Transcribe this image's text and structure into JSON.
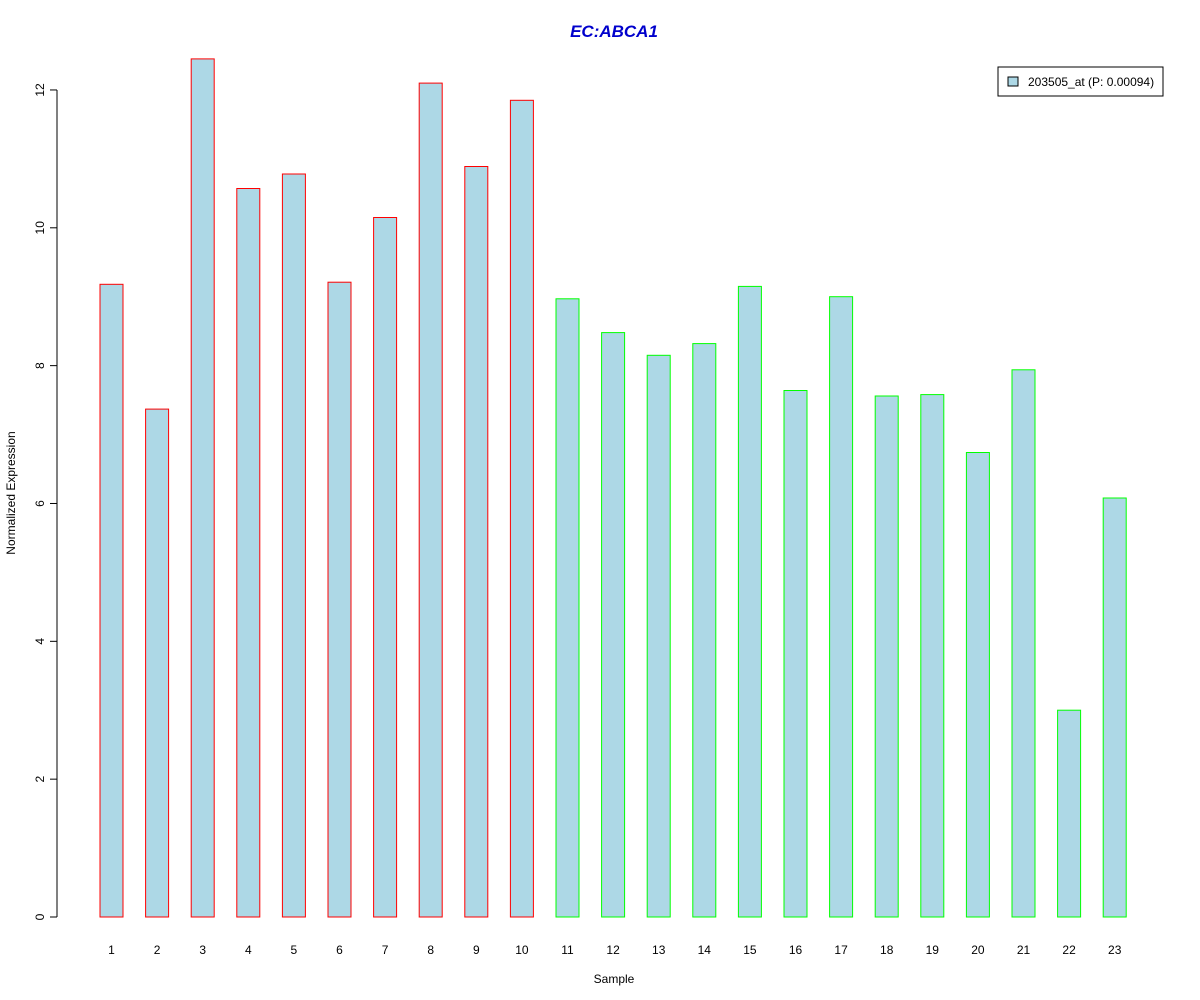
{
  "chart_data": {
    "type": "bar",
    "title": "EC:ABCA1",
    "xlabel": "Sample",
    "ylabel": "Normalized Expression",
    "ylim": [
      0,
      12.5
    ],
    "yticks": [
      0,
      2,
      4,
      6,
      8,
      10,
      12
    ],
    "categories": [
      "1",
      "2",
      "3",
      "4",
      "5",
      "6",
      "7",
      "8",
      "9",
      "10",
      "11",
      "12",
      "13",
      "14",
      "15",
      "16",
      "17",
      "18",
      "19",
      "20",
      "21",
      "22",
      "23"
    ],
    "series": [
      {
        "name": "203505_at (P: 0.00094)",
        "values": [
          9.18,
          7.37,
          12.45,
          10.57,
          10.78,
          9.21,
          10.15,
          12.1,
          10.89,
          11.85,
          8.97,
          8.48,
          8.15,
          8.32,
          9.15,
          7.64,
          9.0,
          7.56,
          7.58,
          6.74,
          7.94,
          3.0,
          6.08
        ]
      }
    ],
    "groups": [
      "1",
      "1",
      "1",
      "1",
      "1",
      "1",
      "1",
      "1",
      "1",
      "1",
      "2",
      "2",
      "2",
      "2",
      "2",
      "2",
      "2",
      "2",
      "2",
      "2",
      "2",
      "2",
      "2"
    ],
    "colors": {
      "bar_fill": "#ADD8E6",
      "group_1_border": "#FF0000",
      "group_2_border": "#00FF00",
      "title": "#0000CC"
    },
    "legend_position": "top-right",
    "grid": false
  }
}
